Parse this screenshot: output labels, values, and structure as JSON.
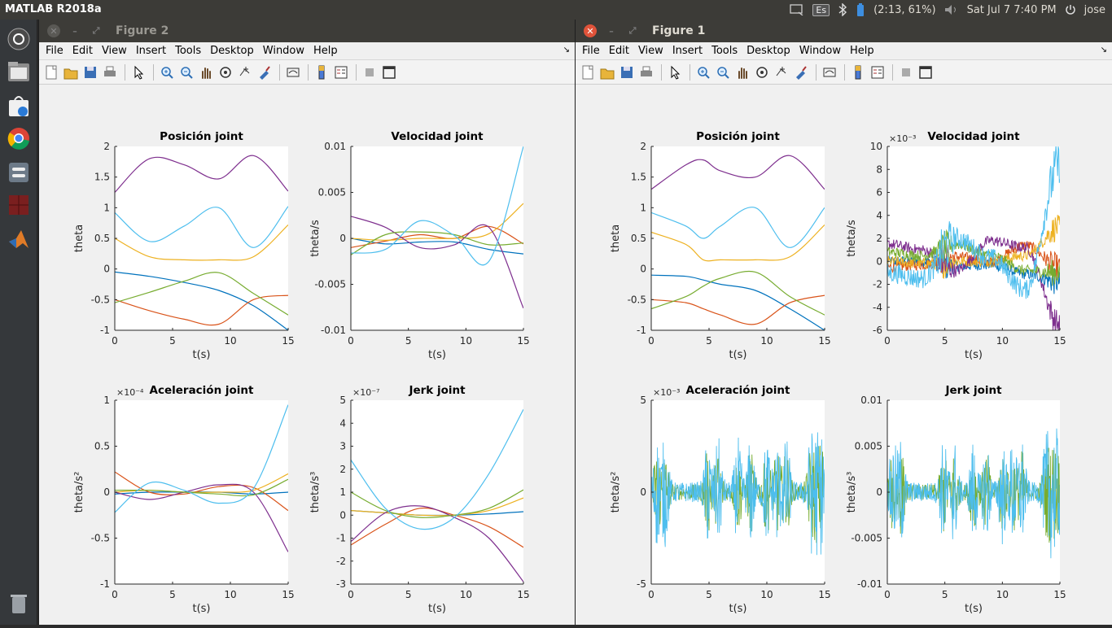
{
  "topbar": {
    "app_title": "MATLAB R2018a",
    "keyboard_layout": "Es",
    "battery": "(2:13, 61%)",
    "clock": "Sat Jul  7  7:40 PM",
    "user": "jose"
  },
  "menus": [
    "File",
    "Edit",
    "View",
    "Insert",
    "Tools",
    "Desktop",
    "Window",
    "Help"
  ],
  "common": {
    "xlabel": "t(s)",
    "xticks": [
      "0",
      "5",
      "10",
      "15"
    ]
  },
  "figures": [
    {
      "id": "fig2",
      "title": "Figure 2",
      "active": false,
      "axes": [
        {
          "title": "Posición joint",
          "ylabel": "theta",
          "exponent": "",
          "yticks": [
            "2",
            "1.5",
            "1",
            "0.5",
            "0",
            "-0.5",
            "-1"
          ]
        },
        {
          "title": "Velocidad joint",
          "ylabel": "theta/s",
          "exponent": "",
          "yticks": [
            "0.01",
            "0.005",
            "0",
            "-0.005",
            "-0.01"
          ]
        },
        {
          "title": "Aceleración joint",
          "ylabel": "theta/s²",
          "exponent": "×10⁻⁴",
          "yticks": [
            "1",
            "0.5",
            "0",
            "-0.5",
            "-1"
          ]
        },
        {
          "title": "Jerk joint",
          "ylabel": "theta/s³",
          "exponent": "×10⁻⁷",
          "yticks": [
            "5",
            "4",
            "3",
            "2",
            "1",
            "0",
            "-1",
            "-2",
            "-3"
          ]
        }
      ]
    },
    {
      "id": "fig1",
      "title": "Figure 1",
      "active": true,
      "axes": [
        {
          "title": "Posición joint",
          "ylabel": "theta",
          "exponent": "",
          "yticks": [
            "2",
            "1.5",
            "1",
            "0.5",
            "0",
            "-0.5",
            "-1"
          ]
        },
        {
          "title": "Velocidad joint",
          "ylabel": "theta/s",
          "exponent": "×10⁻³",
          "yticks": [
            "10",
            "8",
            "6",
            "4",
            "2",
            "0",
            "-2",
            "-4",
            "-6"
          ]
        },
        {
          "title": "Aceleración joint",
          "ylabel": "theta/s²",
          "exponent": "×10⁻³",
          "yticks": [
            "5",
            "0",
            "-5"
          ]
        },
        {
          "title": "Jerk joint",
          "ylabel": "theta/s³",
          "exponent": "",
          "yticks": [
            "0.01",
            "0.005",
            "0",
            "-0.005",
            "-0.01"
          ]
        }
      ]
    }
  ],
  "series_colors": [
    "#0072bd",
    "#d95319",
    "#edb120",
    "#7e2f8e",
    "#77ac30",
    "#4dbeee"
  ],
  "chart_data": [
    {
      "type": "line",
      "title": "Posición joint",
      "xlabel": "t(s)",
      "ylabel": "theta",
      "xlim": [
        0,
        15
      ],
      "ylim": [
        -1,
        2
      ],
      "x": [
        0,
        3,
        6,
        9,
        12,
        15
      ],
      "series": [
        {
          "values": [
            -0.05,
            -0.12,
            -0.22,
            -0.35,
            -0.6,
            -1.0
          ]
        },
        {
          "values": [
            -0.5,
            -0.68,
            -0.82,
            -0.9,
            -0.5,
            -0.43
          ]
        },
        {
          "values": [
            0.5,
            0.2,
            0.15,
            0.15,
            0.2,
            0.72
          ]
        },
        {
          "values": [
            1.25,
            1.8,
            1.7,
            1.47,
            1.85,
            1.27
          ]
        },
        {
          "values": [
            -0.55,
            -0.38,
            -0.2,
            -0.06,
            -0.4,
            -0.75
          ]
        },
        {
          "values": [
            0.92,
            0.45,
            0.7,
            1.0,
            0.35,
            1.02
          ]
        }
      ]
    },
    {
      "type": "line",
      "title": "Velocidad joint",
      "xlabel": "t(s)",
      "ylabel": "theta/s",
      "xlim": [
        0,
        15
      ],
      "ylim": [
        -0.01,
        0.01
      ],
      "x": [
        0,
        3,
        6,
        9,
        12,
        15
      ],
      "series": [
        {
          "values": [
            0.0,
            -0.0006,
            -0.0004,
            -0.0004,
            -0.0012,
            -0.0017
          ]
        },
        {
          "values": [
            -0.001,
            -0.0003,
            0.0004,
            0.0,
            0.0013,
            -0.0006
          ]
        },
        {
          "values": [
            0.0,
            -0.0002,
            0.0,
            0.0,
            0.0005,
            0.0038
          ]
        },
        {
          "values": [
            0.0024,
            0.0012,
            -0.001,
            -0.0007,
            0.0012,
            -0.0076
          ]
        },
        {
          "values": [
            -0.0018,
            0.0004,
            0.0007,
            0.0004,
            -0.0007,
            -0.0005
          ]
        },
        {
          "values": [
            -0.0016,
            -0.0012,
            0.0019,
            0.0003,
            -0.0025,
            0.01
          ]
        }
      ]
    },
    {
      "type": "line",
      "title": "Aceleración joint",
      "xlabel": "t(s)",
      "ylabel": "theta/s²",
      "xlim": [
        0,
        15
      ],
      "ylim": [
        -1,
        1
      ],
      "multiplier": "1e-4",
      "x": [
        0,
        3,
        6,
        9,
        12,
        15
      ],
      "series": [
        {
          "values": [
            -0.02,
            0.0,
            0.0,
            0.0,
            -0.02,
            0.0
          ]
        },
        {
          "values": [
            0.22,
            0.0,
            -0.02,
            0.06,
            0.05,
            -0.2
          ]
        },
        {
          "values": [
            0.0,
            0.02,
            0.0,
            0.0,
            0.02,
            0.2
          ]
        },
        {
          "values": [
            0.0,
            -0.08,
            0.0,
            0.08,
            0.0,
            -0.65
          ]
        },
        {
          "values": [
            0.02,
            0.02,
            0.0,
            -0.02,
            -0.03,
            0.14
          ]
        },
        {
          "values": [
            -0.22,
            0.1,
            0.02,
            -0.12,
            0.04,
            0.95
          ]
        }
      ]
    },
    {
      "type": "line",
      "title": "Jerk joint",
      "xlabel": "t(s)",
      "ylabel": "theta/s³",
      "xlim": [
        0,
        15
      ],
      "ylim": [
        -3,
        5
      ],
      "multiplier": "1e-7",
      "x": [
        0,
        3,
        6,
        9,
        12,
        15
      ],
      "series": [
        {
          "values": [
            0.2,
            0.1,
            0.0,
            0.0,
            0.05,
            0.15
          ]
        },
        {
          "values": [
            -1.3,
            -0.4,
            0.3,
            0.0,
            -0.5,
            -1.4
          ]
        },
        {
          "values": [
            0.2,
            0.1,
            0.0,
            0.0,
            0.2,
            0.75
          ]
        },
        {
          "values": [
            -1.15,
            0.1,
            0.4,
            -0.1,
            -1.0,
            -2.9
          ]
        },
        {
          "values": [
            1.0,
            0.2,
            -0.1,
            0.0,
            0.3,
            1.1
          ]
        },
        {
          "values": [
            2.4,
            0.3,
            -0.6,
            -0.1,
            1.8,
            4.6
          ]
        }
      ]
    },
    {
      "type": "line",
      "title": "Posición joint",
      "xlabel": "t(s)",
      "ylabel": "theta",
      "xlim": [
        0,
        15
      ],
      "ylim": [
        -1,
        2
      ],
      "x": [
        0,
        3,
        4.5,
        6,
        9,
        12,
        15
      ],
      "series": [
        {
          "values": [
            -0.1,
            -0.12,
            -0.18,
            -0.25,
            -0.35,
            -0.65,
            -1.0
          ]
        },
        {
          "values": [
            -0.5,
            -0.55,
            -0.65,
            -0.75,
            -0.9,
            -0.55,
            -0.43
          ]
        },
        {
          "values": [
            0.6,
            0.4,
            0.15,
            0.15,
            0.15,
            0.2,
            0.72
          ]
        },
        {
          "values": [
            1.3,
            1.7,
            1.78,
            1.6,
            1.5,
            1.85,
            1.3
          ]
        },
        {
          "values": [
            -0.65,
            -0.45,
            -0.28,
            -0.15,
            -0.05,
            -0.45,
            -0.75
          ]
        },
        {
          "values": [
            0.92,
            0.7,
            0.5,
            0.7,
            1.0,
            0.35,
            1.0
          ]
        }
      ]
    },
    {
      "type": "line",
      "title": "Velocidad joint",
      "xlabel": "t(s)",
      "ylabel": "theta/s",
      "xlim": [
        0,
        15
      ],
      "ylim": [
        -6,
        10
      ],
      "multiplier": "1e-3",
      "noise": true,
      "x": [
        0,
        3,
        6,
        9,
        12,
        15
      ],
      "series": [
        {
          "values": [
            0.0,
            0.0,
            -0.4,
            -0.3,
            -1.1,
            -1.8
          ]
        },
        {
          "values": [
            -0.5,
            -0.3,
            0.4,
            0.0,
            1.4,
            -0.5
          ]
        },
        {
          "values": [
            0.0,
            -0.2,
            0.0,
            0.0,
            0.5,
            3.0
          ]
        },
        {
          "values": [
            1.5,
            1.0,
            -0.8,
            1.8,
            1.2,
            -5.5
          ]
        },
        {
          "values": [
            0.8,
            0.5,
            1.5,
            0.5,
            -0.8,
            -1.0
          ]
        },
        {
          "values": [
            -1.0,
            -1.5,
            2.0,
            0.3,
            -2.5,
            8.5
          ]
        }
      ]
    },
    {
      "type": "line",
      "title": "Aceleración joint",
      "xlabel": "t(s)",
      "ylabel": "theta/s²",
      "xlim": [
        0,
        15
      ],
      "ylim": [
        -5,
        5
      ],
      "multiplier": "1e-3",
      "noise": true,
      "x": [
        0,
        15
      ],
      "series": [
        {
          "values": [
            0,
            0
          ]
        },
        {
          "values": [
            0,
            0
          ]
        }
      ]
    },
    {
      "type": "line",
      "title": "Jerk joint",
      "xlabel": "t(s)",
      "ylabel": "theta/s³",
      "xlim": [
        0,
        15
      ],
      "ylim": [
        -0.01,
        0.01
      ],
      "noise": true,
      "x": [
        0,
        15
      ],
      "series": [
        {
          "values": [
            0,
            0
          ]
        },
        {
          "values": [
            0,
            0
          ]
        }
      ]
    }
  ]
}
